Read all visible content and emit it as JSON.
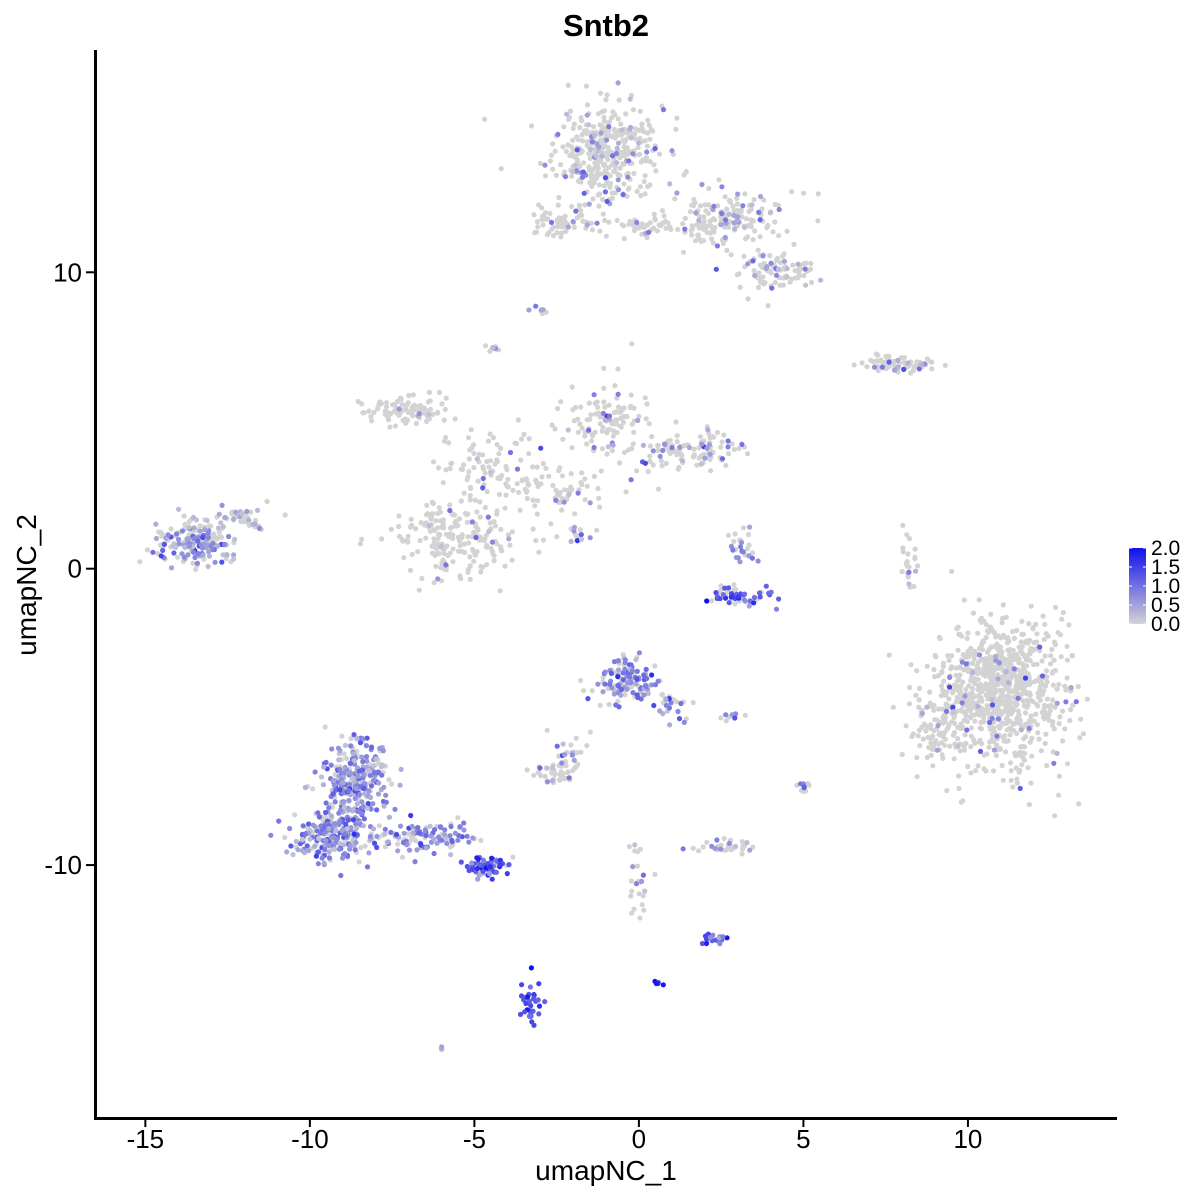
{
  "chart_data": {
    "type": "scatter",
    "title": "Sntb2",
    "xlabel": "umapNC_1",
    "ylabel": "umapNC_2",
    "xlim": [
      -16.5,
      14.5
    ],
    "ylim": [
      -18.5,
      17.5
    ],
    "x_ticks": [
      -15,
      -10,
      -5,
      0,
      5,
      10
    ],
    "x_tick_labels": [
      "-15",
      "-10",
      "-5",
      "0",
      "5",
      "10"
    ],
    "y_ticks": [
      -10,
      0,
      10
    ],
    "y_tick_labels": [
      "-10",
      "0",
      "10"
    ],
    "grid": false,
    "legend_position": "right",
    "color_scale": {
      "low_color": "#d3d3d3",
      "high_color": "#1010f0",
      "min": 0,
      "max": 2.0,
      "legend_values": [
        2.0,
        1.5,
        1.0,
        0.5,
        0.0
      ],
      "legend_labels": [
        "2.0",
        "1.5",
        "1.0",
        "0.5",
        "0.0"
      ]
    },
    "clusters": [
      {
        "cx": -1.0,
        "cy": 14.0,
        "rx": 1.6,
        "ry": 1.5,
        "n": 380,
        "expr_frac": 0.18,
        "expr_mean": 0.6
      },
      {
        "cx": 2.8,
        "cy": 11.8,
        "rx": 1.6,
        "ry": 0.8,
        "n": 160,
        "expr_frac": 0.15,
        "expr_mean": 0.6
      },
      {
        "cx": 4.2,
        "cy": 10.0,
        "rx": 1.0,
        "ry": 0.7,
        "n": 90,
        "expr_frac": 0.15,
        "expr_mean": 0.7
      },
      {
        "cx": 0.5,
        "cy": 11.5,
        "rx": 2.4,
        "ry": 0.3,
        "n": 60,
        "expr_frac": 0.2,
        "expr_mean": 0.7
      },
      {
        "cx": -2.4,
        "cy": 11.7,
        "rx": 0.7,
        "ry": 0.4,
        "n": 45,
        "expr_frac": 0.2,
        "expr_mean": 0.7
      },
      {
        "cx": -3.0,
        "cy": 8.7,
        "rx": 0.2,
        "ry": 0.2,
        "n": 8,
        "expr_frac": 0.3,
        "expr_mean": 0.6
      },
      {
        "cx": -4.4,
        "cy": 7.4,
        "rx": 0.2,
        "ry": 0.2,
        "n": 8,
        "expr_frac": 0.2,
        "expr_mean": 0.5
      },
      {
        "cx": 8.0,
        "cy": 6.9,
        "rx": 1.2,
        "ry": 0.3,
        "n": 70,
        "expr_frac": 0.15,
        "expr_mean": 0.7
      },
      {
        "cx": -7.0,
        "cy": 5.4,
        "rx": 1.2,
        "ry": 0.5,
        "n": 90,
        "expr_frac": 0.05,
        "expr_mean": 0.5
      },
      {
        "cx": -4.5,
        "cy": 3.6,
        "rx": 1.4,
        "ry": 1.0,
        "n": 80,
        "expr_frac": 0.1,
        "expr_mean": 0.6
      },
      {
        "cx": -1.0,
        "cy": 5.0,
        "rx": 1.2,
        "ry": 1.2,
        "n": 110,
        "expr_frac": 0.15,
        "expr_mean": 0.6
      },
      {
        "cx": 1.6,
        "cy": 4.0,
        "rx": 1.5,
        "ry": 0.6,
        "n": 110,
        "expr_frac": 0.2,
        "expr_mean": 0.7
      },
      {
        "cx": -2.5,
        "cy": 2.6,
        "rx": 1.5,
        "ry": 0.7,
        "n": 70,
        "expr_frac": 0.15,
        "expr_mean": 0.6
      },
      {
        "cx": -5.5,
        "cy": 1.0,
        "rx": 1.8,
        "ry": 1.2,
        "n": 200,
        "expr_frac": 0.06,
        "expr_mean": 0.6
      },
      {
        "cx": -13.4,
        "cy": 1.0,
        "rx": 1.2,
        "ry": 0.8,
        "n": 180,
        "expr_frac": 0.55,
        "expr_mean": 0.6
      },
      {
        "cx": -12.0,
        "cy": 1.7,
        "rx": 0.7,
        "ry": 0.4,
        "n": 35,
        "expr_frac": 0.5,
        "expr_mean": 0.6
      },
      {
        "cx": -1.9,
        "cy": 1.2,
        "rx": 0.6,
        "ry": 0.3,
        "n": 15,
        "expr_frac": 0.3,
        "expr_mean": 0.6
      },
      {
        "cx": 3.1,
        "cy": -0.9,
        "rx": 1.0,
        "ry": 0.3,
        "n": 55,
        "expr_frac": 0.75,
        "expr_mean": 1.2
      },
      {
        "cx": 3.2,
        "cy": 0.6,
        "rx": 0.4,
        "ry": 0.6,
        "n": 25,
        "expr_frac": 0.5,
        "expr_mean": 0.9
      },
      {
        "cx": 8.2,
        "cy": 0.2,
        "rx": 0.3,
        "ry": 0.8,
        "n": 22,
        "expr_frac": 0.1,
        "expr_mean": 0.6
      },
      {
        "cx": 11.0,
        "cy": -4.2,
        "rx": 1.8,
        "ry": 2.2,
        "n": 900,
        "expr_frac": 0.04,
        "expr_mean": 0.7
      },
      {
        "cx": 9.0,
        "cy": -5.5,
        "rx": 0.7,
        "ry": 1.0,
        "n": 70,
        "expr_frac": 0.1,
        "expr_mean": 0.6
      },
      {
        "cx": -0.4,
        "cy": -3.8,
        "rx": 0.8,
        "ry": 0.7,
        "n": 130,
        "expr_frac": 0.6,
        "expr_mean": 0.8
      },
      {
        "cx": 1.0,
        "cy": -4.7,
        "rx": 0.4,
        "ry": 0.6,
        "n": 25,
        "expr_frac": 0.5,
        "expr_mean": 0.7
      },
      {
        "cx": -2.0,
        "cy": -6.2,
        "rx": 0.5,
        "ry": 0.7,
        "n": 25,
        "expr_frac": 0.4,
        "expr_mean": 0.7
      },
      {
        "cx": -2.6,
        "cy": -6.9,
        "rx": 0.6,
        "ry": 0.3,
        "n": 35,
        "expr_frac": 0.2,
        "expr_mean": 0.6
      },
      {
        "cx": -8.6,
        "cy": -7.2,
        "rx": 0.9,
        "ry": 1.4,
        "n": 280,
        "expr_frac": 0.75,
        "expr_mean": 0.7
      },
      {
        "cx": -9.3,
        "cy": -9.0,
        "rx": 1.1,
        "ry": 0.8,
        "n": 220,
        "expr_frac": 0.75,
        "expr_mean": 0.7
      },
      {
        "cx": -6.5,
        "cy": -9.1,
        "rx": 1.4,
        "ry": 0.5,
        "n": 120,
        "expr_frac": 0.7,
        "expr_mean": 0.8
      },
      {
        "cx": -4.6,
        "cy": -10.0,
        "rx": 0.6,
        "ry": 0.35,
        "n": 70,
        "expr_frac": 0.9,
        "expr_mean": 1.2
      },
      {
        "cx": 2.8,
        "cy": -5.0,
        "rx": 0.3,
        "ry": 0.15,
        "n": 10,
        "expr_frac": 0.4,
        "expr_mean": 0.7
      },
      {
        "cx": 5.0,
        "cy": -7.4,
        "rx": 0.2,
        "ry": 0.3,
        "n": 10,
        "expr_frac": 0.3,
        "expr_mean": 0.7
      },
      {
        "cx": 2.6,
        "cy": -9.4,
        "rx": 0.8,
        "ry": 0.3,
        "n": 35,
        "expr_frac": 0.2,
        "expr_mean": 0.7
      },
      {
        "cx": 0.0,
        "cy": -10.8,
        "rx": 0.3,
        "ry": 1.2,
        "n": 25,
        "expr_frac": 0.3,
        "expr_mean": 0.6
      },
      {
        "cx": 2.3,
        "cy": -12.5,
        "rx": 0.4,
        "ry": 0.2,
        "n": 20,
        "expr_frac": 0.9,
        "expr_mean": 1.1
      },
      {
        "cx": -3.3,
        "cy": -14.6,
        "rx": 0.3,
        "ry": 0.7,
        "n": 35,
        "expr_frac": 0.95,
        "expr_mean": 1.4
      },
      {
        "cx": 0.6,
        "cy": -14.0,
        "rx": 0.1,
        "ry": 0.1,
        "n": 5,
        "expr_frac": 1.0,
        "expr_mean": 1.5
      },
      {
        "cx": -6.0,
        "cy": -16.2,
        "rx": 0.1,
        "ry": 0.1,
        "n": 4,
        "expr_frac": 0.5,
        "expr_mean": 0.5
      }
    ]
  }
}
